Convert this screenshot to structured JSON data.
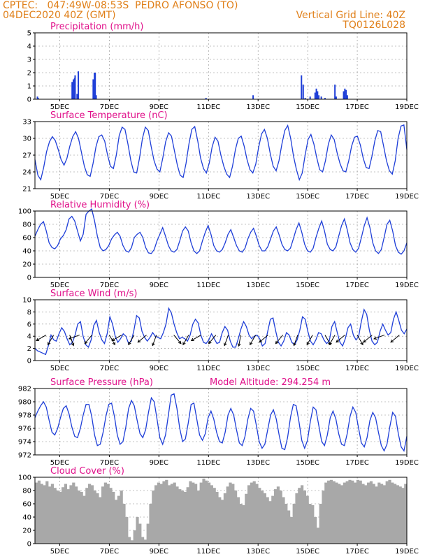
{
  "header": {
    "line1": "CPTEC:   047:49W-08:53S  PEDRO AFONSO (TO)",
    "line2": "04DEC2020 40Z (GMT)",
    "grid_note": "Vertical Grid Line: 40Z",
    "code": "TQ0126L028"
  },
  "colors": {
    "header": "#e0801a",
    "title": "#e0108a",
    "line": "#1f3fd8",
    "cloud": "#a8a8a8",
    "arrow": "#000000"
  },
  "x_ticks": [
    "5DEC",
    "7DEC",
    "9DEC",
    "11DEC",
    "13DEC",
    "15DEC",
    "17DEC",
    "19DEC"
  ],
  "x_tick_days": [
    5,
    7,
    9,
    11,
    13,
    15,
    17,
    19
  ],
  "chart_data": [
    {
      "type": "bar",
      "title": "Precipitation (mm/h)",
      "x_range_days": [
        4.0,
        19.0
      ],
      "ylim": [
        0,
        5
      ],
      "y_ticks": [
        0,
        1,
        2,
        3,
        4,
        5
      ],
      "x": [
        4.1,
        4.13,
        5.5,
        5.55,
        5.6,
        5.62,
        5.7,
        5.75,
        6.35,
        6.4,
        6.43,
        6.47,
        10.9,
        12.8,
        14.75,
        14.82,
        14.9,
        15.1,
        15.3,
        15.35,
        15.4,
        15.45,
        15.55,
        15.7,
        16.1,
        16.15,
        16.45,
        16.5,
        16.55,
        16.6
      ],
      "values": [
        0.2,
        0.1,
        1.3,
        1.5,
        1.6,
        1.8,
        0.4,
        2.1,
        1.5,
        2.0,
        2.0,
        0.3,
        0.1,
        0.3,
        1.8,
        1.1,
        0.1,
        0.2,
        0.5,
        0.8,
        0.6,
        0.3,
        0.2,
        0.1,
        1.1,
        0.2,
        0.6,
        0.8,
        0.7,
        0.3
      ],
      "grid": true
    },
    {
      "type": "line",
      "title": "Surface Temperature (nC)",
      "x_range_days": [
        4.0,
        19.0
      ],
      "ylim": [
        21,
        33
      ],
      "y_ticks": [
        21,
        24,
        27,
        30,
        33
      ],
      "series": [
        {
          "values": [
            26.2,
            23.4,
            22.6,
            24.8,
            27.6,
            29.4,
            30.3,
            29.6,
            28.0,
            26.2,
            25.2,
            26.4,
            28.6,
            30.3,
            31.2,
            30.0,
            27.5,
            25.0,
            23.5,
            23.2,
            25.5,
            28.5,
            30.3,
            30.6,
            29.5,
            27.0,
            25.0,
            24.6,
            27.0,
            30.5,
            32.0,
            31.6,
            29.0,
            26.0,
            24.0,
            23.8,
            26.5,
            30.0,
            32.0,
            31.4,
            28.5,
            26.0,
            24.5,
            24.0,
            26.5,
            29.4,
            31.0,
            30.4,
            27.8,
            25.2,
            23.4,
            23.0,
            25.5,
            29.0,
            31.6,
            32.1,
            29.6,
            26.5,
            24.6,
            23.8,
            25.6,
            28.5,
            30.2,
            29.5,
            27.0,
            25.0,
            23.6,
            23.0,
            25.0,
            28.0,
            30.0,
            30.4,
            28.6,
            26.2,
            24.4,
            23.8,
            25.4,
            28.4,
            30.8,
            31.6,
            30.0,
            27.2,
            25.0,
            24.2,
            26.0,
            29.0,
            31.4,
            32.3,
            30.0,
            26.8,
            24.4,
            22.6,
            23.8,
            27.0,
            29.8,
            30.7,
            29.0,
            26.5,
            24.4,
            24.0,
            26.0,
            29.0,
            30.6,
            29.8,
            27.4,
            25.5,
            24.2,
            24.0,
            26.0,
            28.6,
            30.2,
            30.4,
            28.8,
            26.4,
            24.8,
            24.6,
            26.8,
            29.6,
            31.4,
            31.2,
            28.6,
            26.0,
            24.2,
            23.6,
            26.0,
            30.0,
            32.2,
            32.4,
            28.0
          ]
        }
      ],
      "grid": true
    },
    {
      "type": "line",
      "title": "Relative Humidity (%)",
      "x_range_days": [
        4.0,
        19.0
      ],
      "ylim": [
        0,
        100
      ],
      "y_ticks": [
        0,
        20,
        40,
        60,
        80,
        100
      ],
      "series": [
        {
          "values": [
            62,
            72,
            80,
            84,
            70,
            52,
            45,
            43,
            48,
            58,
            63,
            72,
            88,
            92,
            85,
            70,
            55,
            65,
            95,
            100,
            103,
            85,
            62,
            45,
            40,
            42,
            48,
            58,
            64,
            68,
            62,
            48,
            40,
            38,
            45,
            60,
            65,
            68,
            60,
            45,
            37,
            36,
            42,
            55,
            65,
            75,
            62,
            48,
            40,
            38,
            42,
            55,
            70,
            76,
            70,
            52,
            40,
            36,
            40,
            55,
            68,
            78,
            65,
            48,
            40,
            38,
            42,
            52,
            65,
            72,
            60,
            48,
            40,
            38,
            44,
            58,
            68,
            74,
            62,
            48,
            40,
            40,
            46,
            58,
            70,
            76,
            64,
            50,
            42,
            40,
            44,
            58,
            72,
            82,
            68,
            50,
            40,
            38,
            44,
            60,
            74,
            85,
            70,
            50,
            42,
            40,
            46,
            62,
            78,
            88,
            72,
            52,
            42,
            38,
            44,
            60,
            78,
            90,
            75,
            52,
            40,
            36,
            42,
            60,
            80,
            86,
            70,
            48,
            38,
            35,
            40,
            52
          ]
        }
      ],
      "grid": true
    },
    {
      "type": "line",
      "title": "Surface Wind (m/s)",
      "x_range_days": [
        4.0,
        19.0
      ],
      "ylim": [
        0,
        10
      ],
      "y_ticks": [
        0,
        2,
        4,
        6,
        8,
        10
      ],
      "series": [
        {
          "values": [
            2.0,
            1.6,
            1.4,
            1.2,
            1.0,
            2.4,
            4.2,
            3.4,
            3.2,
            4.4,
            5.4,
            4.8,
            3.6,
            2.6,
            3.0,
            4.2,
            6.0,
            6.4,
            4.0,
            2.6,
            2.2,
            3.4,
            5.8,
            6.6,
            4.6,
            3.4,
            2.8,
            4.4,
            7.2,
            6.0,
            4.0,
            3.0,
            3.6,
            4.4,
            4.0,
            2.8,
            3.2,
            5.0,
            7.4,
            7.0,
            4.8,
            3.8,
            3.2,
            3.8,
            4.6,
            4.0,
            3.8,
            3.6,
            4.6,
            6.0,
            8.6,
            7.8,
            6.0,
            4.6,
            3.6,
            3.8,
            3.6,
            3.2,
            4.2,
            6.0,
            6.8,
            6.2,
            4.2,
            3.0,
            2.8,
            3.4,
            4.4,
            3.6,
            2.8,
            3.0,
            4.6,
            5.6,
            5.0,
            3.2,
            2.2,
            2.2,
            3.6,
            5.2,
            6.4,
            5.6,
            4.2,
            3.6,
            4.0,
            4.2,
            3.6,
            2.4,
            2.8,
            4.8,
            6.8,
            7.0,
            4.8,
            3.0,
            2.4,
            3.2,
            4.6,
            4.2,
            3.0,
            2.6,
            3.4,
            5.0,
            7.2,
            6.8,
            4.8,
            3.2,
            2.6,
            3.4,
            4.6,
            4.4,
            3.4,
            2.8,
            3.2,
            5.6,
            6.4,
            4.6,
            3.0,
            2.4,
            3.6,
            5.4,
            6.0,
            4.2,
            3.4,
            4.0,
            6.4,
            8.4,
            7.6,
            5.0,
            3.2,
            2.6,
            3.0,
            4.8,
            6.0,
            5.0,
            4.2,
            4.6,
            6.8,
            8.0,
            6.6,
            5.0,
            4.4,
            5.2
          ]
        }
      ],
      "arrows": [
        {
          "x": 4.45,
          "dir": 210
        },
        {
          "x": 4.75,
          "dir": 240
        },
        {
          "x": 5.4,
          "dir": 290
        },
        {
          "x": 5.8,
          "dir": 200
        },
        {
          "x": 6.3,
          "dir": 230
        },
        {
          "x": 7.0,
          "dir": 300
        },
        {
          "x": 7.5,
          "dir": 210
        },
        {
          "x": 8.0,
          "dir": 240
        },
        {
          "x": 8.5,
          "dir": 220
        },
        {
          "x": 8.9,
          "dir": 250
        },
        {
          "x": 9.6,
          "dir": 310
        },
        {
          "x": 10.2,
          "dir": 240
        },
        {
          "x": 10.7,
          "dir": 210
        },
        {
          "x": 11.3,
          "dir": 230
        },
        {
          "x": 11.8,
          "dir": 250
        },
        {
          "x": 12.3,
          "dir": 260
        },
        {
          "x": 12.9,
          "dir": 240
        },
        {
          "x": 13.4,
          "dir": 220
        },
        {
          "x": 14.0,
          "dir": 230
        },
        {
          "x": 14.6,
          "dir": 250
        },
        {
          "x": 15.2,
          "dir": 240
        },
        {
          "x": 15.7,
          "dir": 300
        },
        {
          "x": 16.1,
          "dir": 240
        },
        {
          "x": 16.5,
          "dir": 220
        },
        {
          "x": 17.0,
          "dir": 300
        },
        {
          "x": 17.6,
          "dir": 220
        },
        {
          "x": 18.1,
          "dir": 200
        },
        {
          "x": 18.7,
          "dir": 220
        }
      ],
      "grid": true
    },
    {
      "type": "line",
      "title": "Surface Pressure (hPa)",
      "subtitle": "Model Altitude: 294.254 m",
      "x_range_days": [
        4.0,
        19.0
      ],
      "ylim": [
        972,
        982
      ],
      "y_ticks": [
        972,
        974,
        976,
        978,
        980,
        982
      ],
      "series": [
        {
          "values": [
            977.6,
            978.6,
            979.4,
            980.0,
            979.2,
            977.2,
            975.4,
            975.0,
            976.0,
            977.6,
            979.0,
            979.4,
            978.2,
            976.2,
            974.8,
            974.6,
            976.0,
            978.0,
            979.6,
            979.6,
            977.8,
            975.0,
            973.4,
            973.6,
            975.4,
            977.8,
            979.6,
            979.8,
            977.8,
            975.0,
            973.6,
            974.0,
            976.2,
            979.0,
            980.2,
            979.4,
            977.2,
            975.2,
            974.6,
            975.8,
            978.4,
            980.6,
            980.0,
            977.4,
            974.6,
            973.6,
            975.0,
            978.0,
            981.0,
            981.2,
            979.0,
            976.0,
            974.0,
            974.4,
            976.8,
            979.6,
            979.8,
            977.4,
            975.0,
            974.2,
            975.2,
            977.6,
            978.6,
            977.4,
            975.4,
            974.0,
            973.8,
            975.4,
            978.0,
            979.0,
            978.0,
            975.8,
            973.8,
            973.4,
            974.8,
            977.4,
            979.0,
            978.6,
            976.4,
            974.0,
            973.0,
            973.6,
            975.8,
            978.0,
            978.8,
            977.4,
            975.0,
            973.0,
            972.8,
            974.6,
            977.6,
            979.6,
            979.4,
            977.0,
            974.2,
            973.0,
            974.2,
            977.0,
            979.2,
            978.8,
            976.4,
            974.0,
            973.4,
            975.0,
            977.6,
            978.6,
            977.4,
            975.2,
            973.6,
            973.4,
            975.2,
            977.8,
            979.2,
            978.4,
            976.0,
            973.8,
            973.2,
            974.6,
            977.2,
            978.4,
            977.6,
            975.4,
            973.4,
            972.6,
            973.6,
            976.2,
            978.4,
            977.8,
            975.2,
            973.2,
            972.6,
            974.8
          ]
        }
      ],
      "grid": true
    },
    {
      "type": "area",
      "title": "Cloud Cover (%)",
      "x_range_days": [
        4.0,
        19.0
      ],
      "ylim": [
        0,
        100
      ],
      "y_ticks": [
        0,
        20,
        40,
        60,
        80,
        100
      ],
      "series": [
        {
          "values": [
            92,
            95,
            90,
            88,
            94,
            86,
            90,
            84,
            80,
            78,
            85,
            90,
            82,
            88,
            92,
            86,
            80,
            78,
            72,
            84,
            90,
            88,
            80,
            76,
            70,
            86,
            92,
            90,
            84,
            78,
            66,
            72,
            80,
            60,
            40,
            10,
            5,
            20,
            40,
            30,
            10,
            6,
            30,
            60,
            80,
            88,
            92,
            90,
            94,
            96,
            88,
            90,
            92,
            86,
            82,
            80,
            78,
            85,
            94,
            92,
            90,
            80,
            92,
            98,
            95,
            92,
            88,
            84,
            78,
            70,
            66,
            76,
            86,
            92,
            90,
            80,
            70,
            60,
            58,
            75,
            88,
            92,
            94,
            90,
            84,
            80,
            76,
            70,
            64,
            72,
            82,
            86,
            80,
            70,
            60,
            50,
            40,
            60,
            76,
            84,
            88,
            80,
            72,
            60,
            58,
            40,
            24,
            60,
            80,
            92,
            95,
            96,
            94,
            92,
            90,
            88,
            92,
            94,
            96,
            95,
            92,
            96,
            95,
            90,
            88,
            92,
            94,
            90,
            86,
            92,
            90,
            88,
            94,
            96,
            92,
            90,
            88,
            86,
            84,
            90
          ]
        }
      ],
      "grid": true
    }
  ]
}
